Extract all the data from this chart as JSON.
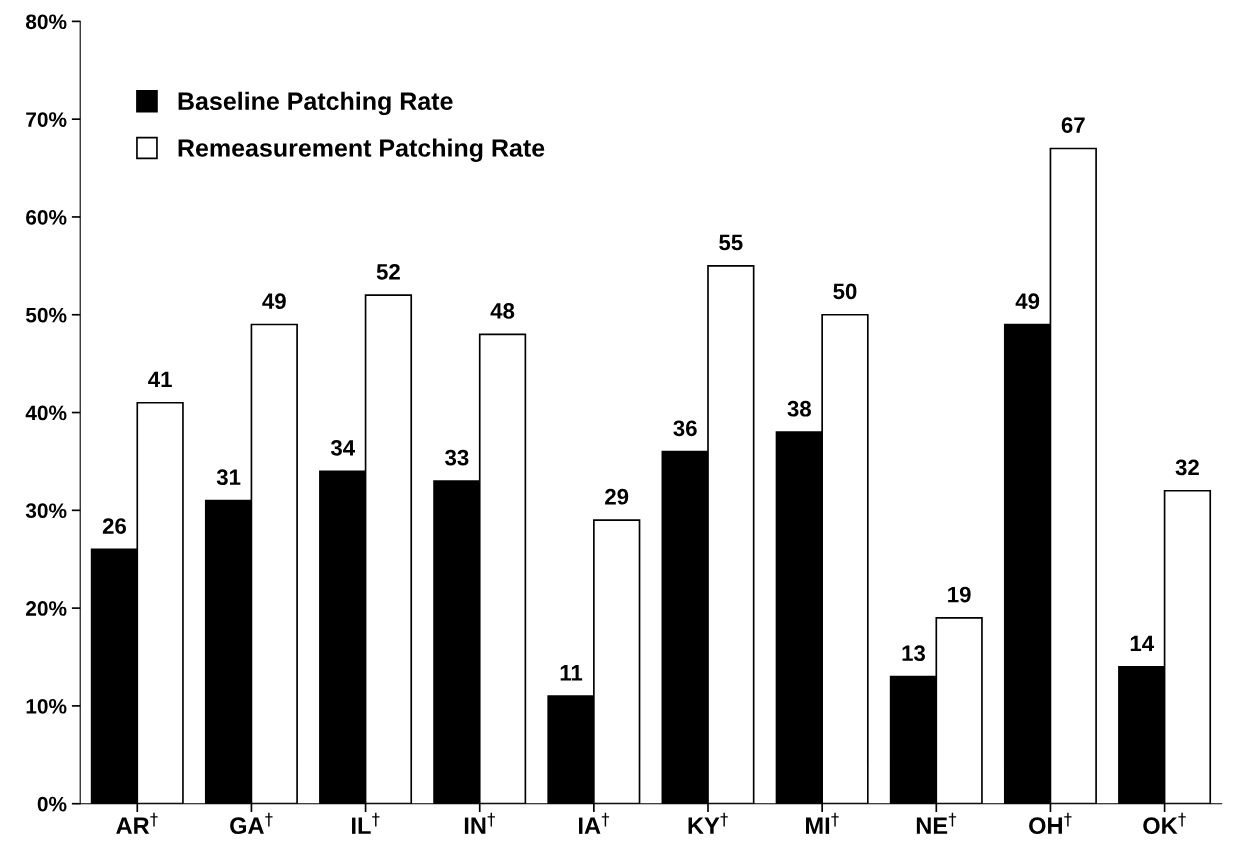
{
  "chart_data": {
    "type": "bar",
    "categories": [
      "AR$^{†}$",
      "GA$^{†}$",
      "IL$^{†}$",
      "IN$^{†}$",
      "IA$^{†}$",
      "KY$^{†}$",
      "MI$^{†}$",
      "NE$^{†}$",
      "OH$^{†}$",
      "OK$^{†}$"
    ],
    "series": [
      {
        "name": "Baseline Patching Rate",
        "color": "#000000",
        "values": [
          26,
          31,
          34,
          33,
          11,
          36,
          38,
          13,
          49,
          14
        ]
      },
      {
        "name": "Remeasurement Patching Rate",
        "color": "#ffffff",
        "values": [
          41,
          49,
          52,
          48,
          29,
          55,
          50,
          19,
          67,
          32
        ]
      }
    ],
    "ylim": [
      0,
      80
    ],
    "yticks": [
      {
        "value": 0,
        "label": "0%"
      },
      {
        "value": 10,
        "label": "10%"
      },
      {
        "value": 20,
        "label": "20%"
      },
      {
        "value": 30,
        "label": "30%"
      },
      {
        "value": 40,
        "label": "40%"
      },
      {
        "value": 50,
        "label": "50%"
      },
      {
        "value": 60,
        "label": "60%"
      },
      {
        "value": 70,
        "label": "70%"
      },
      {
        "value": 80,
        "label": "80%"
      }
    ],
    "data_labels": true,
    "grid": false,
    "legend": "top left"
  }
}
